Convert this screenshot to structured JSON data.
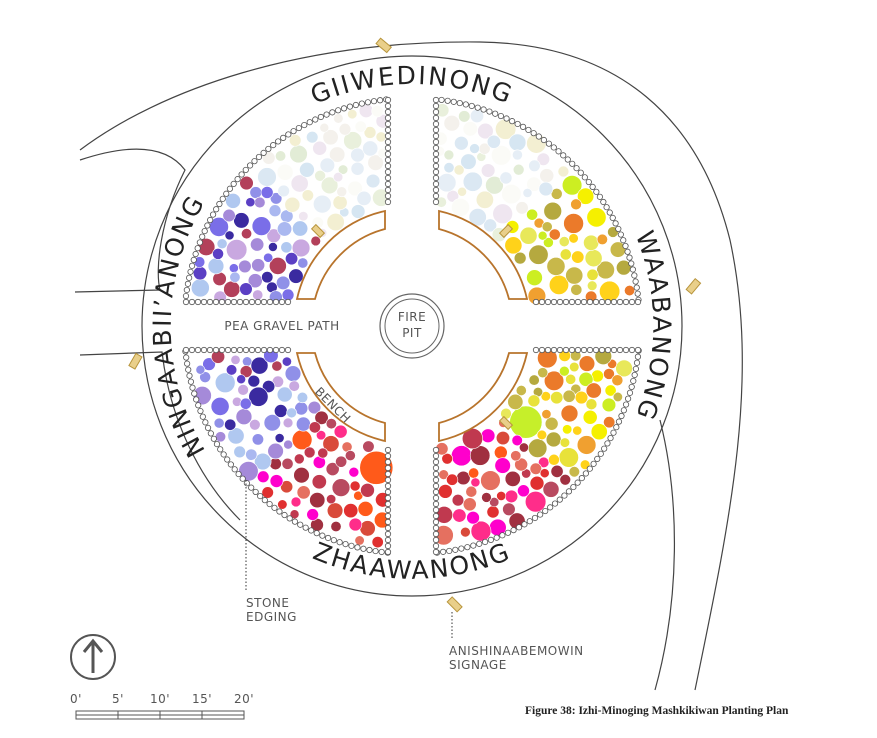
{
  "directions": {
    "north": "GIIWEDINONG",
    "east": "WAABANONG",
    "south": "ZHAAWANONG",
    "west": "NINGAABII’ANONG"
  },
  "labels": {
    "path": "PEA GRAVEL PATH",
    "fire_pit": [
      "FIRE",
      "PIT"
    ],
    "bench": "BENCH",
    "stone_edging": [
      "STONE",
      "EDGING"
    ],
    "signage": [
      "ANISHINAABEMOWIN",
      "SIGNAGE"
    ]
  },
  "scale": [
    "0'",
    "5'",
    "10'",
    "15'",
    "20'"
  ],
  "caption": "Figure 38: Izhi-Minoging Mashkikiwan Planting Plan"
}
